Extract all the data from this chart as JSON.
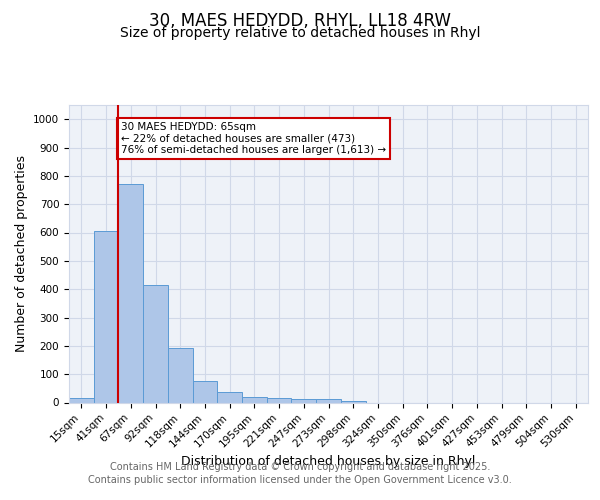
{
  "title_line1": "30, MAES HEDYDD, RHYL, LL18 4RW",
  "title_line2": "Size of property relative to detached houses in Rhyl",
  "xlabel": "Distribution of detached houses by size in Rhyl",
  "ylabel": "Number of detached properties",
  "bar_color": "#aec6e8",
  "bar_edge_color": "#5b9bd5",
  "bar_categories": [
    "15sqm",
    "41sqm",
    "67sqm",
    "92sqm",
    "118sqm",
    "144sqm",
    "170sqm",
    "195sqm",
    "221sqm",
    "247sqm",
    "273sqm",
    "298sqm",
    "324sqm",
    "350sqm",
    "376sqm",
    "401sqm",
    "427sqm",
    "453sqm",
    "479sqm",
    "504sqm",
    "530sqm"
  ],
  "bar_values": [
    15,
    605,
    770,
    415,
    192,
    75,
    38,
    18,
    15,
    12,
    12,
    7,
    0,
    0,
    0,
    0,
    0,
    0,
    0,
    0,
    0
  ],
  "bar_width": 1.0,
  "ylim": [
    0,
    1050
  ],
  "yticks": [
    0,
    100,
    200,
    300,
    400,
    500,
    600,
    700,
    800,
    900,
    1000
  ],
  "property_line_x": 1.5,
  "property_line_color": "#cc0000",
  "annotation_text": "30 MAES HEDYDD: 65sqm\n← 22% of detached houses are smaller (473)\n76% of semi-detached houses are larger (1,613) →",
  "annotation_box_color": "#ffffff",
  "annotation_box_edge_color": "#cc0000",
  "grid_color": "#d0d8e8",
  "background_color": "#eef2f8",
  "footnote_line1": "Contains HM Land Registry data © Crown copyright and database right 2025.",
  "footnote_line2": "Contains public sector information licensed under the Open Government Licence v3.0.",
  "title_fontsize": 12,
  "subtitle_fontsize": 10,
  "tick_fontsize": 7.5,
  "label_fontsize": 9,
  "footnote_fontsize": 7
}
